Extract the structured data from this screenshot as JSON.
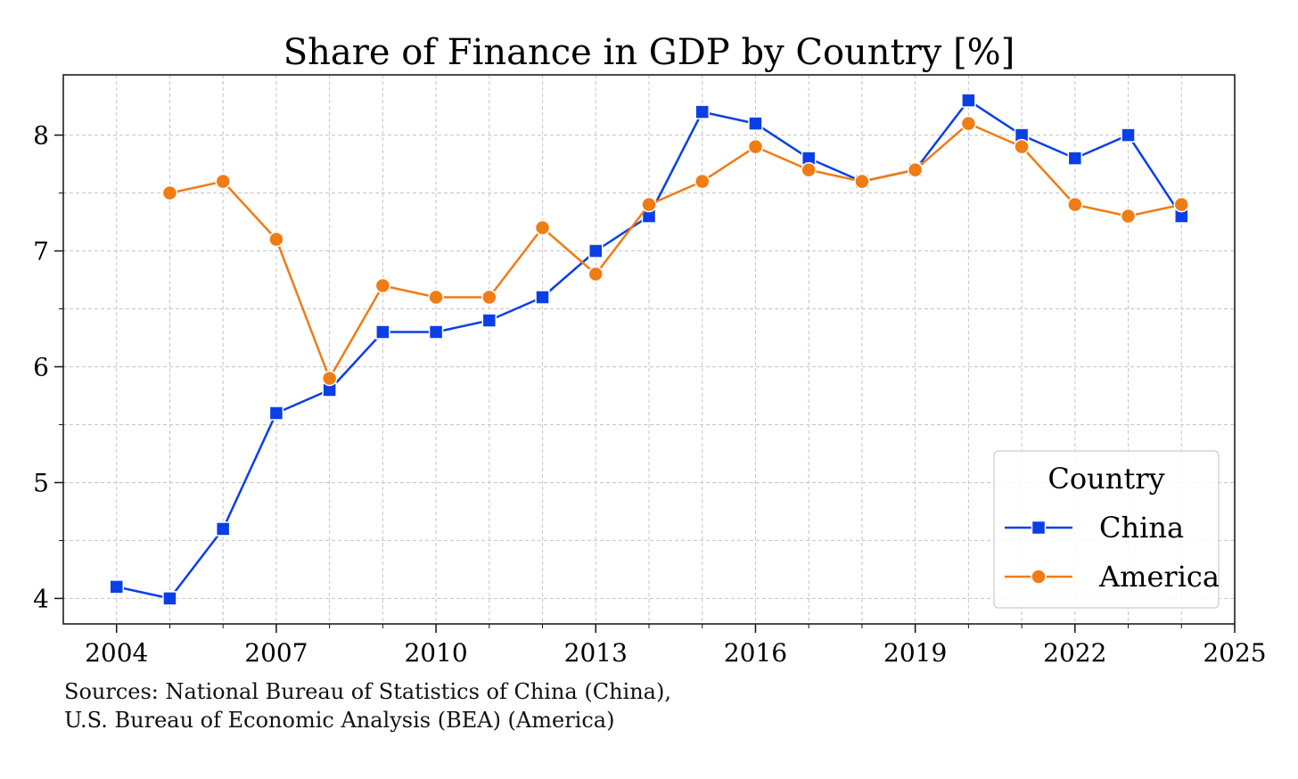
{
  "chart_data": {
    "type": "line",
    "title": "Share of Finance in GDP by Country [%]",
    "xlabel": "",
    "ylabel": "",
    "xlim": [
      2003,
      2025
    ],
    "ylim": [
      3.78,
      8.52
    ],
    "grid": true,
    "x_ticks": [
      2004,
      2007,
      2010,
      2013,
      2016,
      2019,
      2022,
      2025
    ],
    "x_minor_ticks": [
      2005,
      2006,
      2008,
      2009,
      2011,
      2012,
      2014,
      2015,
      2017,
      2018,
      2020,
      2021,
      2023,
      2024
    ],
    "y_ticks": [
      4,
      5,
      6,
      7,
      8
    ],
    "y_minor_ticks": [
      4.5,
      5.5,
      6.5,
      7.5
    ],
    "series": [
      {
        "name": "China",
        "color": "#0a3fe8",
        "marker": "square",
        "x": [
          2004,
          2005,
          2006,
          2007,
          2008,
          2009,
          2010,
          2011,
          2012,
          2013,
          2014,
          2015,
          2016,
          2017,
          2018,
          2019,
          2020,
          2021,
          2022,
          2023,
          2024
        ],
        "values": [
          4.1,
          4.0,
          4.6,
          5.6,
          5.8,
          6.3,
          6.3,
          6.4,
          6.6,
          7.0,
          7.3,
          8.2,
          8.1,
          7.8,
          7.6,
          7.7,
          8.3,
          8.0,
          7.8,
          8.0,
          7.3
        ]
      },
      {
        "name": "America",
        "color": "#f07c14",
        "marker": "circle",
        "x": [
          2005,
          2006,
          2007,
          2008,
          2009,
          2010,
          2011,
          2012,
          2013,
          2014,
          2015,
          2016,
          2017,
          2018,
          2019,
          2020,
          2021,
          2022,
          2023,
          2024
        ],
        "values": [
          7.5,
          7.6,
          7.1,
          5.9,
          6.7,
          6.6,
          6.6,
          7.2,
          6.8,
          7.4,
          7.6,
          7.9,
          7.7,
          7.6,
          7.7,
          8.1,
          7.9,
          7.4,
          7.3,
          7.4
        ]
      }
    ],
    "legend": {
      "title": "Country",
      "position": "lower-right"
    }
  },
  "sources": {
    "line1": "Sources: National Bureau of Statistics of China (China),",
    "line2": "U.S. Bureau of Economic Analysis (BEA) (America)"
  }
}
